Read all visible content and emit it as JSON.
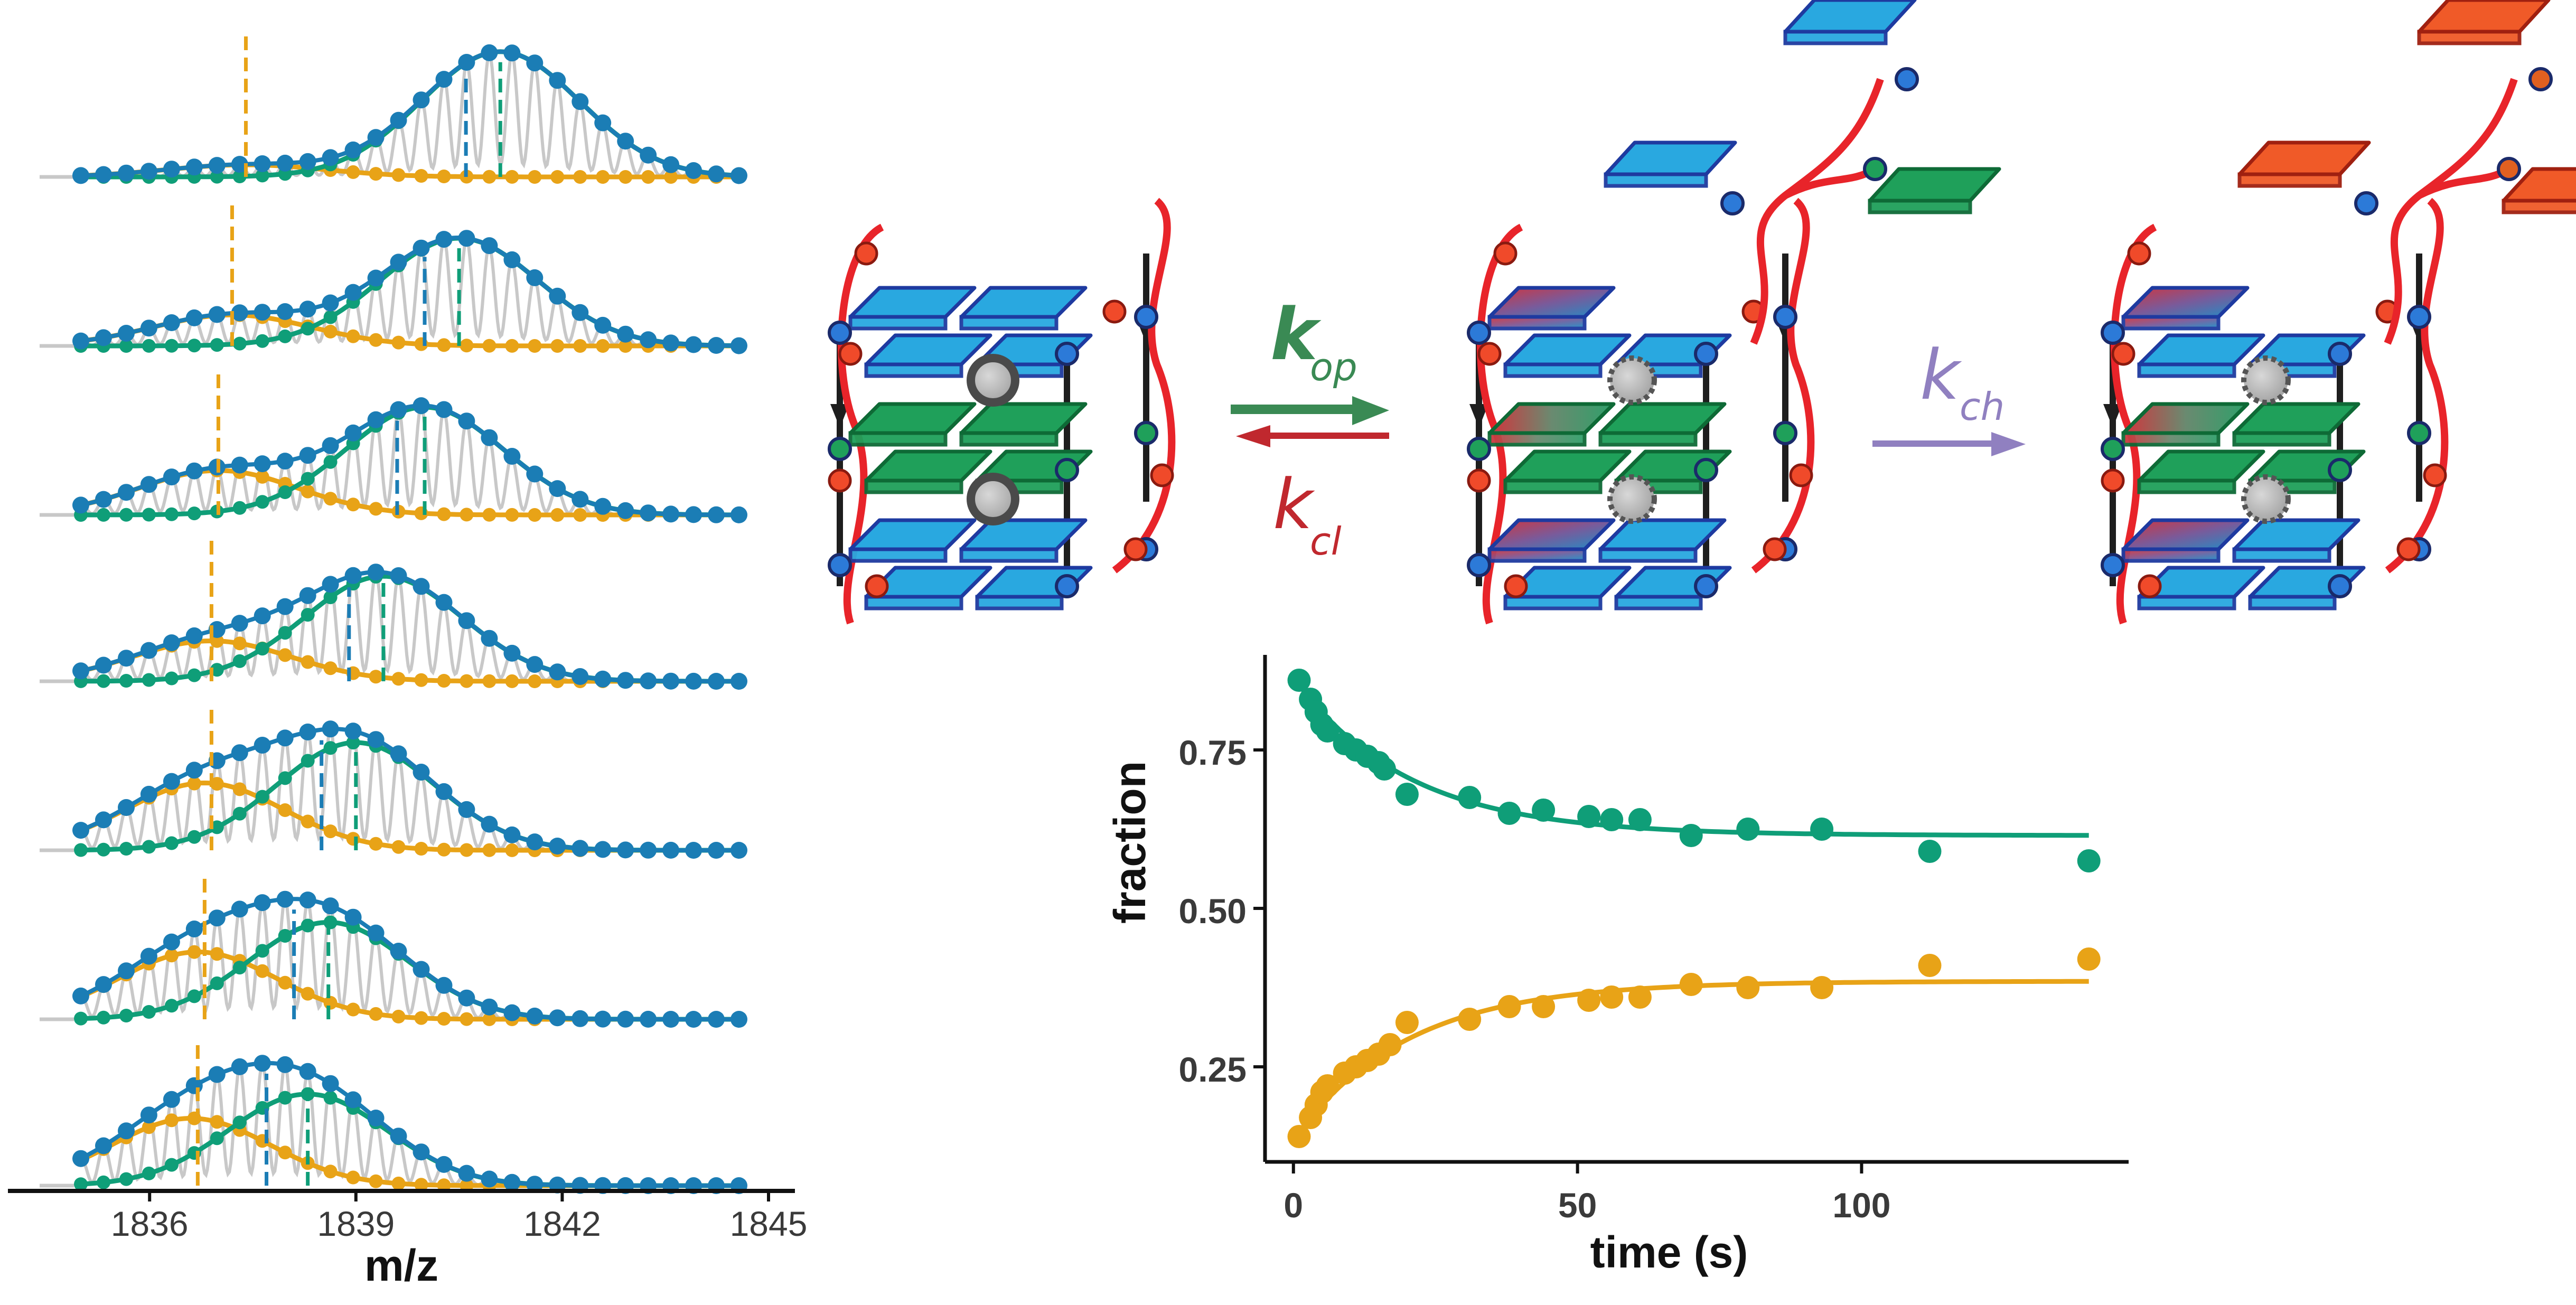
{
  "colors": {
    "teal": "#0F9E78",
    "yellow": "#E8A317",
    "blue_dots": "#1B7DB5",
    "grey_peaks": "#C8C8C8",
    "box_blue": "#29A8E0",
    "box_green": "#1FA05A",
    "box_red": "#F05A28",
    "strand_red": "#E8242A",
    "arrow_green": "#3A8A54",
    "arrow_red": "#C0282E",
    "arrow_purple": "#9080C0"
  },
  "rates": {
    "open": {
      "base": "k",
      "sub": "op"
    },
    "close": {
      "base": "k",
      "sub": "cl"
    },
    "change": {
      "base": "k",
      "sub": "ch"
    }
  },
  "icons": [
    "cube-structure-closed-icon",
    "cube-structure-open-icon",
    "cube-structure-changed-icon",
    "cation-icon"
  ],
  "chart_data": [
    {
      "type": "line",
      "title": "",
      "xlabel": "m/z",
      "ylabel": "",
      "xlim": [
        1834.5,
        1845
      ],
      "xticks": [
        1836,
        1839,
        1842,
        1845
      ],
      "panels": [
        {
          "series": [
            {
              "name": "",
              "center": 1837.4,
              "amp": 0.09
            },
            {
              "name": "",
              "center": 1841.1,
              "amp": 0.93
            }
          ],
          "markers": [
            1837.4,
            1840.6,
            1841.1
          ]
        },
        {
          "series": [
            {
              "name": "",
              "center": 1837.2,
              "amp": 0.23
            },
            {
              "name": "",
              "center": 1840.5,
              "amp": 0.8
            }
          ],
          "markers": [
            1837.2,
            1840.0,
            1840.5
          ]
        },
        {
          "series": [
            {
              "name": "",
              "center": 1837.0,
              "amp": 0.33
            },
            {
              "name": "",
              "center": 1840.0,
              "amp": 0.8
            }
          ],
          "markers": [
            1837.0,
            1839.6,
            1840.0
          ]
        },
        {
          "series": [
            {
              "name": "",
              "center": 1836.9,
              "amp": 0.3
            },
            {
              "name": "",
              "center": 1839.4,
              "amp": 0.78
            }
          ],
          "markers": [
            1836.9,
            1838.9,
            1839.4
          ]
        },
        {
          "series": [
            {
              "name": "",
              "center": 1836.8,
              "amp": 0.5
            },
            {
              "name": "",
              "center": 1839.0,
              "amp": 0.8
            }
          ],
          "markers": [
            1836.9,
            1838.5,
            1839.0
          ]
        },
        {
          "series": [
            {
              "name": "",
              "center": 1836.7,
              "amp": 0.5
            },
            {
              "name": "",
              "center": 1838.6,
              "amp": 0.72
            }
          ],
          "markers": [
            1836.8,
            1838.1,
            1838.6
          ]
        },
        {
          "series": [
            {
              "name": "",
              "center": 1836.6,
              "amp": 0.5
            },
            {
              "name": "",
              "center": 1838.3,
              "amp": 0.68
            }
          ],
          "markers": [
            1836.7,
            1837.7,
            1838.3
          ]
        }
      ]
    },
    {
      "type": "scatter",
      "title": "",
      "xlabel": "time (s)",
      "ylabel": "fraction",
      "xlim": [
        -5,
        147
      ],
      "ylim": [
        0.1,
        0.9
      ],
      "xticks": [
        0,
        50,
        100
      ],
      "yticks": [
        0.25,
        0.5,
        0.75
      ],
      "ytick_labels": [
        "0.25",
        "0.50",
        "0.75"
      ],
      "series": [
        {
          "name": "",
          "color": "#0F9E78",
          "points": [
            [
              1,
              0.86
            ],
            [
              3,
              0.83
            ],
            [
              4,
              0.81
            ],
            [
              5,
              0.79
            ],
            [
              6,
              0.78
            ],
            [
              9,
              0.76
            ],
            [
              11,
              0.75
            ],
            [
              13,
              0.74
            ],
            [
              15,
              0.73
            ],
            [
              16,
              0.72
            ],
            [
              20,
              0.68
            ],
            [
              31,
              0.675
            ],
            [
              38,
              0.65
            ],
            [
              44,
              0.655
            ],
            [
              52,
              0.645
            ],
            [
              56,
              0.64
            ],
            [
              61,
              0.64
            ],
            [
              70,
              0.615
            ],
            [
              80,
              0.625
            ],
            [
              93,
              0.625
            ],
            [
              112,
              0.59
            ],
            [
              140,
              0.575
            ]
          ],
          "fit": {
            "A": 0.385,
            "B": 0.25,
            "tau": 20
          }
        },
        {
          "name": "",
          "color": "#E8A317",
          "points": [
            [
              1,
              0.14
            ],
            [
              3,
              0.17
            ],
            [
              4,
              0.19
            ],
            [
              5,
              0.21
            ],
            [
              6,
              0.22
            ],
            [
              9,
              0.24
            ],
            [
              11,
              0.25
            ],
            [
              13,
              0.26
            ],
            [
              15,
              0.27
            ],
            [
              17,
              0.285
            ],
            [
              20,
              0.32
            ],
            [
              31,
              0.325
            ],
            [
              38,
              0.345
            ],
            [
              44,
              0.345
            ],
            [
              52,
              0.355
            ],
            [
              56,
              0.36
            ],
            [
              61,
              0.36
            ],
            [
              70,
              0.38
            ],
            [
              80,
              0.375
            ],
            [
              93,
              0.375
            ],
            [
              112,
              0.41
            ],
            [
              140,
              0.42
            ]
          ],
          "fit": {
            "A": 0.385,
            "B": 0.25,
            "tau": 20
          }
        }
      ]
    }
  ]
}
